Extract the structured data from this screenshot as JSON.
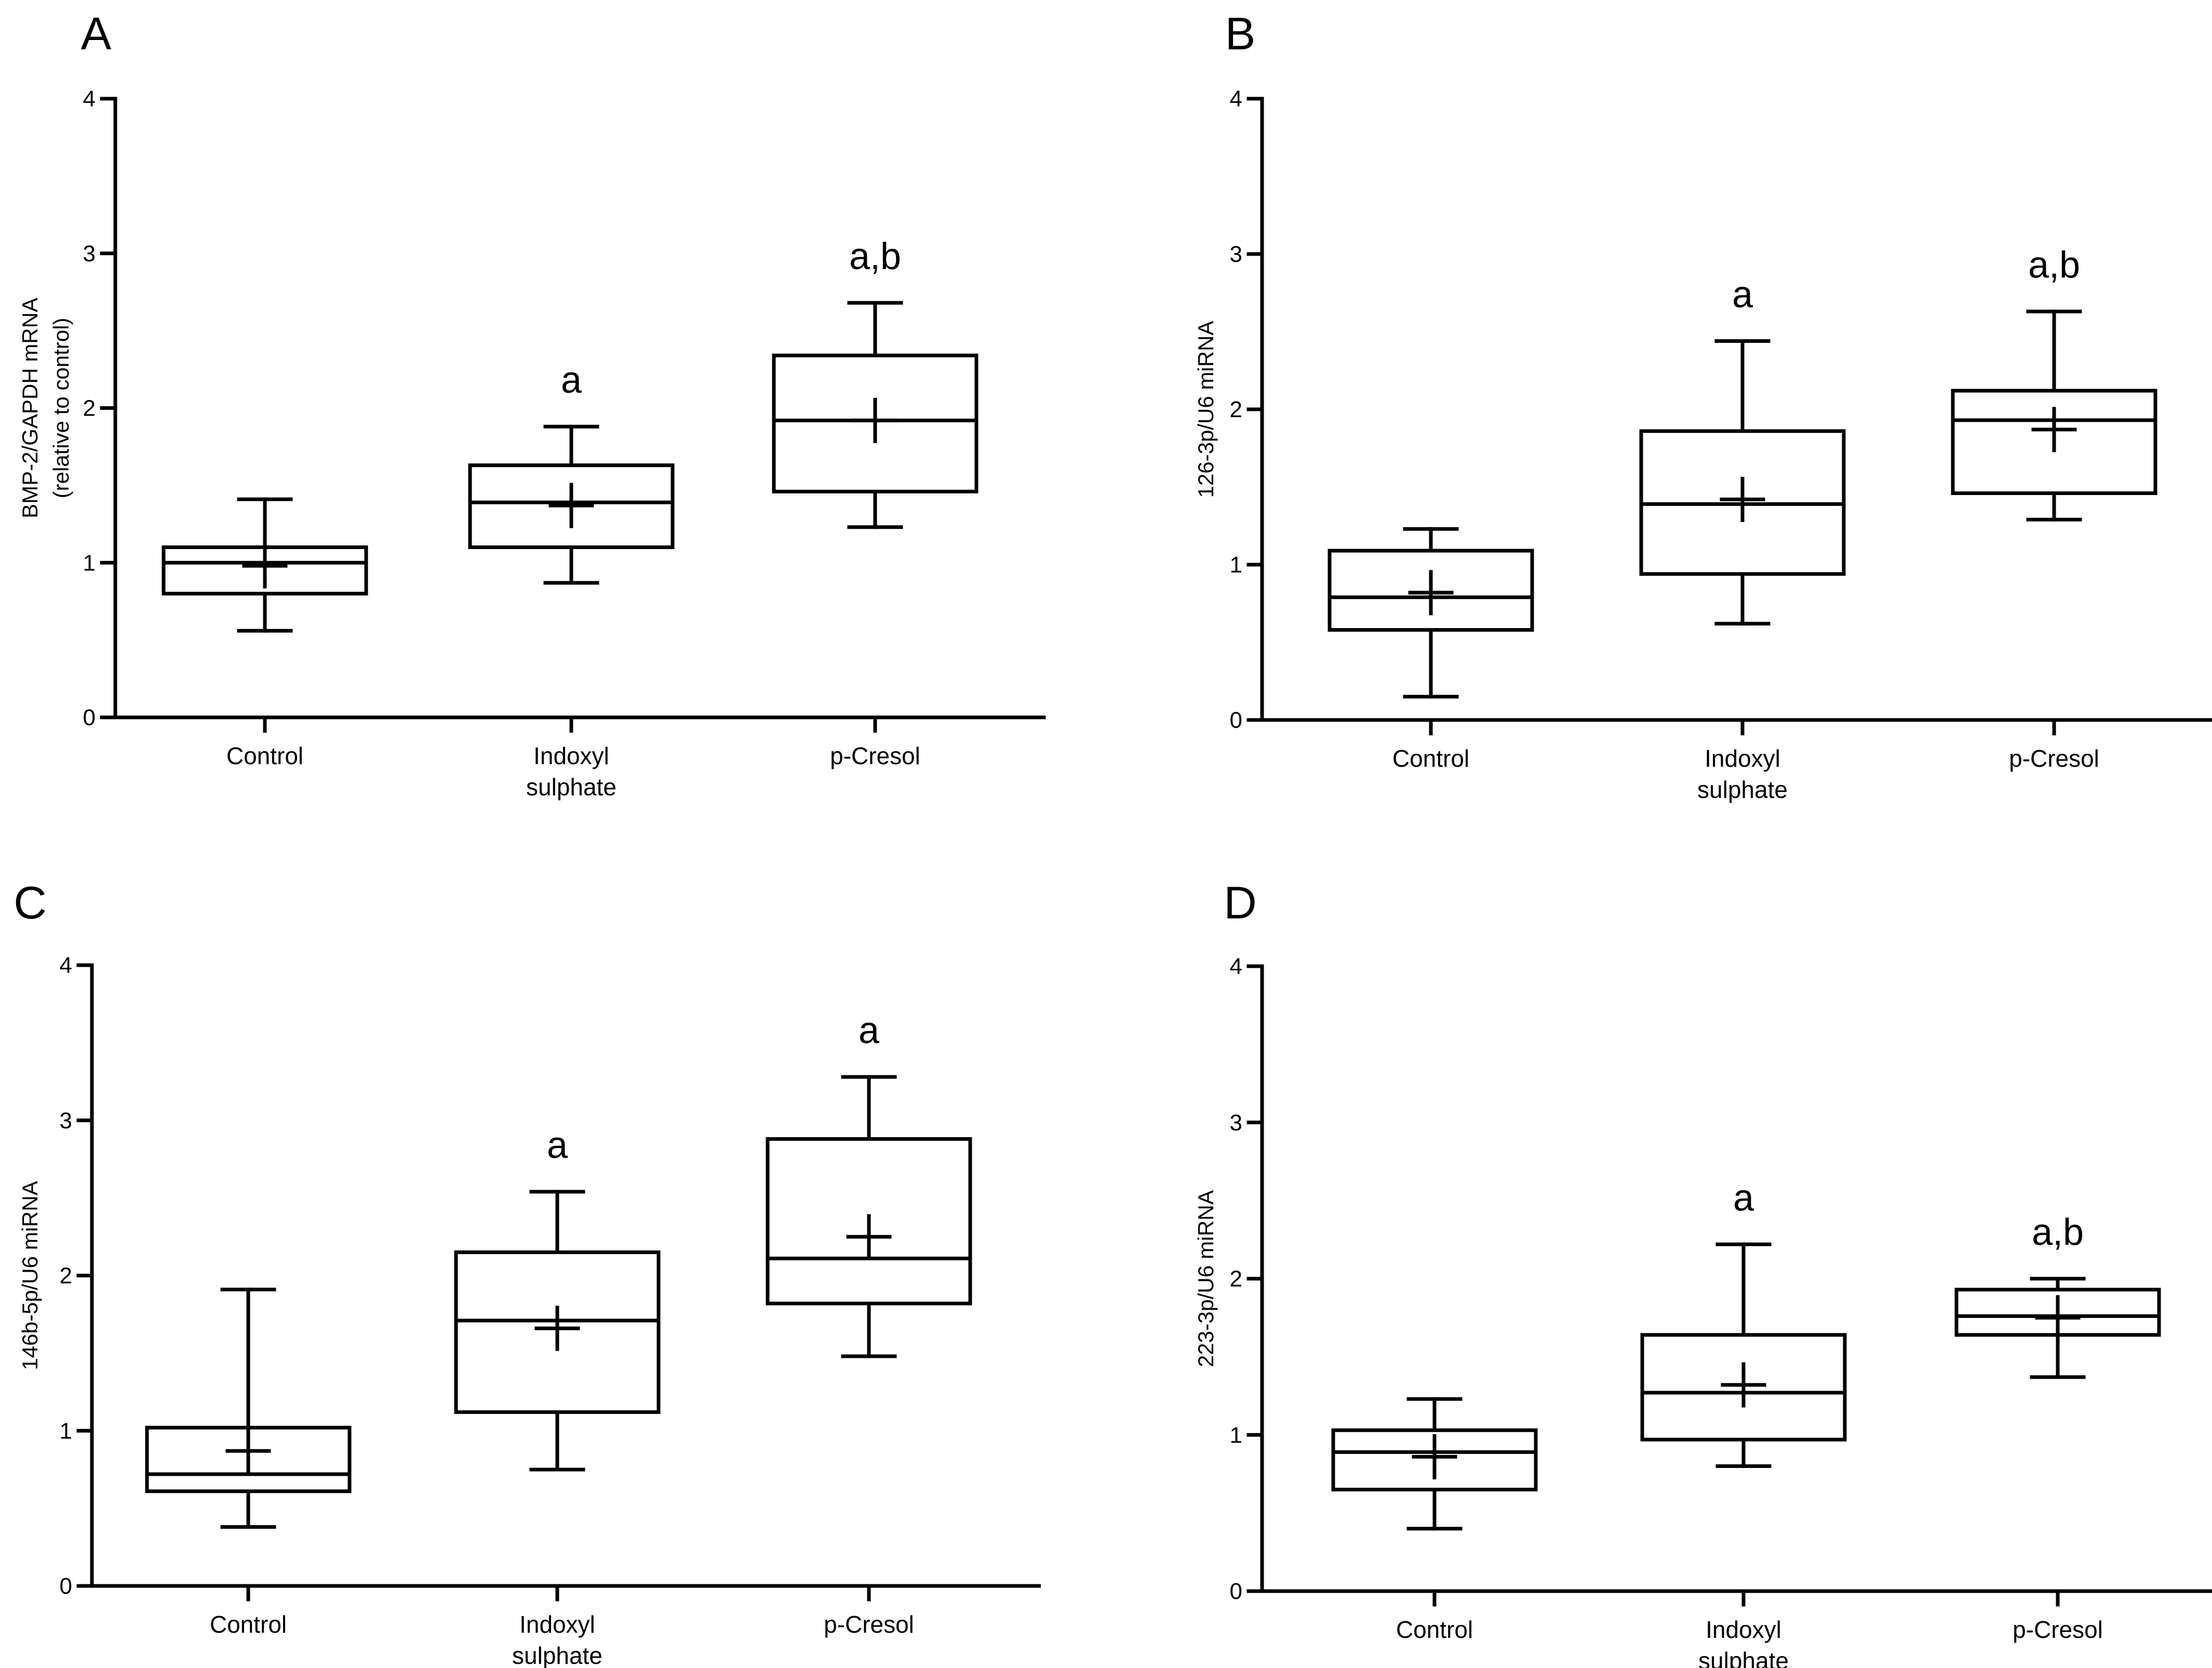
{
  "chart_data": [
    {
      "panel": "A",
      "type": "box",
      "ylabel": [
        "BMP-2/GAPDH mRNA",
        "(relative to control)"
      ],
      "ylim": [
        0,
        4
      ],
      "yticks": [
        "0",
        "1",
        "2",
        "3",
        "4"
      ],
      "categories": [
        [
          "Control"
        ],
        [
          "Indoxyl",
          "sulphate"
        ],
        [
          "p-Cresol"
        ]
      ],
      "boxes": [
        {
          "min": 0.56,
          "q1": 0.8,
          "median": 1.0,
          "q3": 1.1,
          "max": 1.41,
          "mean": 0.98,
          "annotation": ""
        },
        {
          "min": 0.87,
          "q1": 1.1,
          "median": 1.39,
          "q3": 1.63,
          "max": 1.88,
          "mean": 1.37,
          "annotation": "a"
        },
        {
          "min": 1.23,
          "q1": 1.46,
          "median": 1.92,
          "q3": 2.34,
          "max": 2.68,
          "mean": 1.92,
          "annotation": "a,b"
        }
      ]
    },
    {
      "panel": "B",
      "type": "box",
      "ylabel": [
        "126-3p/U6 miRNA"
      ],
      "ylim": [
        0,
        4
      ],
      "yticks": [
        "0",
        "1",
        "2",
        "3",
        "4"
      ],
      "categories": [
        [
          "Control"
        ],
        [
          "Indoxyl",
          "sulphate"
        ],
        [
          "p-Cresol"
        ]
      ],
      "boxes": [
        {
          "min": 0.15,
          "q1": 0.58,
          "median": 0.79,
          "q3": 1.09,
          "max": 1.23,
          "mean": 0.82,
          "annotation": ""
        },
        {
          "min": 0.62,
          "q1": 0.94,
          "median": 1.39,
          "q3": 1.86,
          "max": 2.44,
          "mean": 1.42,
          "annotation": "a"
        },
        {
          "min": 1.29,
          "q1": 1.46,
          "median": 1.93,
          "q3": 2.12,
          "max": 2.63,
          "mean": 1.87,
          "annotation": "a,b"
        }
      ]
    },
    {
      "panel": "C",
      "type": "box",
      "ylabel": [
        "146b-5p/U6 miRNA"
      ],
      "ylim": [
        0,
        4
      ],
      "yticks": [
        "0",
        "1",
        "2",
        "3",
        "4"
      ],
      "categories": [
        [
          "Control"
        ],
        [
          "Indoxyl",
          "sulphate"
        ],
        [
          "p-Cresol"
        ]
      ],
      "boxes": [
        {
          "min": 0.38,
          "q1": 0.61,
          "median": 0.72,
          "q3": 1.02,
          "max": 1.91,
          "mean": 0.87,
          "annotation": ""
        },
        {
          "min": 0.75,
          "q1": 1.12,
          "median": 1.71,
          "q3": 2.15,
          "max": 2.54,
          "mean": 1.66,
          "annotation": "a"
        },
        {
          "min": 1.48,
          "q1": 1.82,
          "median": 2.11,
          "q3": 2.88,
          "max": 3.28,
          "mean": 2.25,
          "annotation": "a"
        }
      ]
    },
    {
      "panel": "D",
      "type": "box",
      "ylabel": [
        "223-3p/U6 miRNA"
      ],
      "ylim": [
        0,
        4
      ],
      "yticks": [
        "0",
        "1",
        "2",
        "3",
        "4"
      ],
      "categories": [
        [
          "Control"
        ],
        [
          "Indoxyl",
          "sulphate"
        ],
        [
          "p-Cresol"
        ]
      ],
      "boxes": [
        {
          "min": 0.4,
          "q1": 0.65,
          "median": 0.89,
          "q3": 1.03,
          "max": 1.23,
          "mean": 0.86,
          "annotation": ""
        },
        {
          "min": 0.8,
          "q1": 0.97,
          "median": 1.27,
          "q3": 1.64,
          "max": 2.22,
          "mean": 1.32,
          "annotation": "a"
        },
        {
          "min": 1.37,
          "q1": 1.64,
          "median": 1.76,
          "q3": 1.93,
          "max": 2.0,
          "mean": 1.75,
          "annotation": "a,b"
        }
      ]
    }
  ],
  "colors": {
    "ink": "#000000",
    "background": "#ffffff"
  }
}
